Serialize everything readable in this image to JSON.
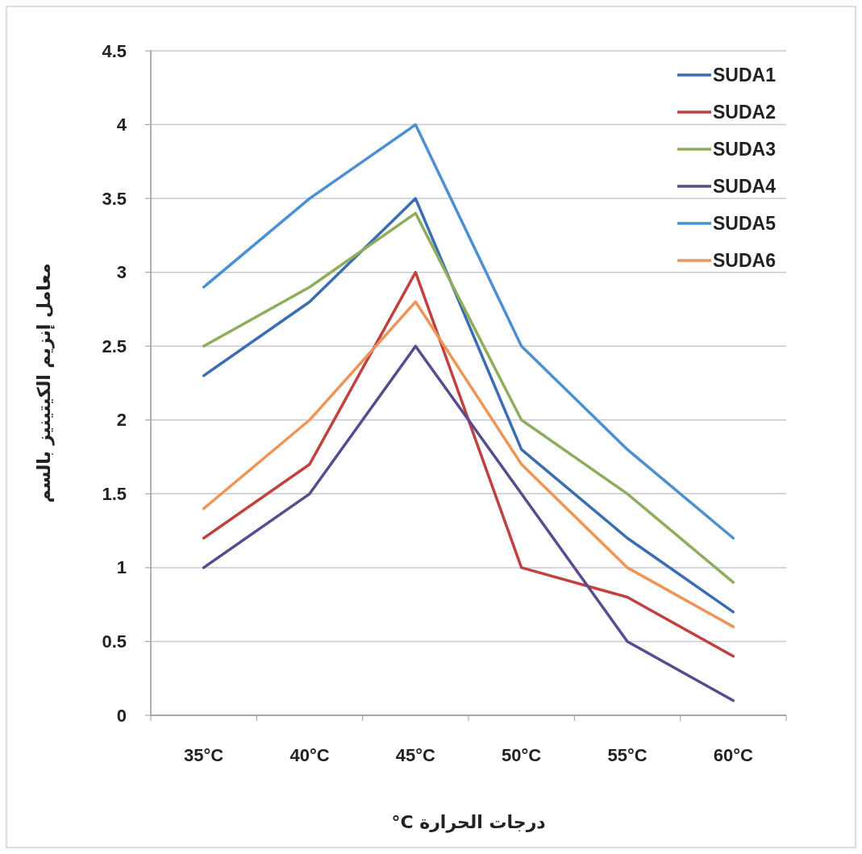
{
  "chart_data": {
    "type": "line",
    "xlabel": "درجات الحرارة C°",
    "ylabel": "معامل إنزيم الكيتينيز بالسم",
    "categories": [
      "35°C",
      "40°C",
      "45°C",
      "50°C",
      "55°C",
      "60°C"
    ],
    "ylim": [
      0,
      4.5
    ],
    "yticks": [
      0,
      0.5,
      1,
      1.5,
      2,
      2.5,
      3,
      3.5,
      4,
      4.5
    ],
    "grid": "y",
    "legend": "top right",
    "marker": "none",
    "line_style": "solid",
    "series": [
      {
        "name": "SUDA1",
        "color": "#3b6db5",
        "values": [
          2.3,
          2.8,
          3.5,
          1.8,
          1.2,
          0.7
        ]
      },
      {
        "name": "SUDA2",
        "color": "#c0413d",
        "values": [
          1.2,
          1.7,
          3.0,
          1.0,
          0.8,
          0.4
        ]
      },
      {
        "name": "SUDA3",
        "color": "#8fae5c",
        "values": [
          2.5,
          2.9,
          3.4,
          2.0,
          1.5,
          0.9
        ]
      },
      {
        "name": "SUDA4",
        "color": "#5b4b8e",
        "values": [
          1.0,
          1.5,
          2.5,
          1.5,
          0.5,
          0.1
        ]
      },
      {
        "name": "SUDA5",
        "color": "#4a90d2",
        "values": [
          2.9,
          3.5,
          4.0,
          2.5,
          1.8,
          1.2
        ]
      },
      {
        "name": "SUDA6",
        "color": "#ee9557",
        "values": [
          1.4,
          2.0,
          2.8,
          1.7,
          1.0,
          0.6
        ]
      }
    ]
  }
}
